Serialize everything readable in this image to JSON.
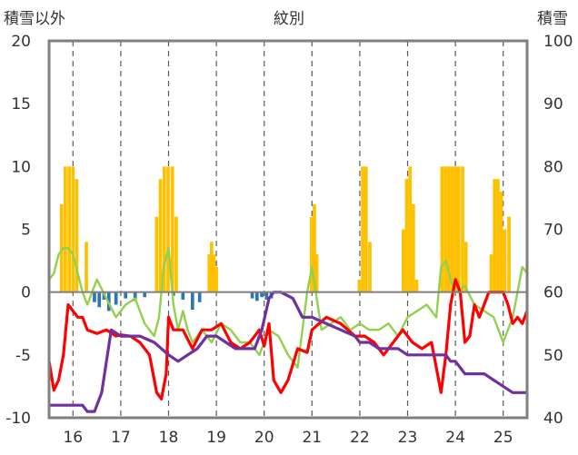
{
  "chart_data": {
    "type": "bar+line",
    "title": "紋別",
    "left_axis": {
      "label": "積雪以外",
      "range": [
        -10,
        20
      ],
      "ticks": [
        "20",
        "15",
        "10",
        "5",
        "0",
        "-5",
        "-10"
      ]
    },
    "right_axis": {
      "label": "積雪",
      "range": [
        40,
        100
      ],
      "ticks": [
        "100",
        "90",
        "80",
        "70",
        "60",
        "50",
        "40"
      ]
    },
    "x_axis": {
      "range": [
        15.5,
        25.5
      ],
      "ticks": [
        "16",
        "17",
        "18",
        "19",
        "20",
        "21",
        "22",
        "23",
        "24",
        "25"
      ]
    },
    "grid": "vertical dashed at each day",
    "colors": {
      "snowfall": "#FFC000",
      "rain": "#2E75B6",
      "red": "#FF0000",
      "green": "#92D050",
      "purple": "#7030A0",
      "frame": "#7f7f7f"
    },
    "series": [
      {
        "kind": "bar",
        "axis": "left",
        "color": "#FFC000",
        "x": [
          15.76,
          15.84,
          15.92,
          16.0,
          16.08,
          16.28,
          17.75,
          17.83,
          17.91,
          17.99,
          18.08,
          18.16,
          18.85,
          18.9,
          18.95,
          19.0,
          20.99,
          21.05,
          21.1,
          21.99,
          22.06,
          22.13,
          22.21,
          22.91,
          22.98,
          23.05,
          23.12,
          23.19,
          23.72,
          23.79,
          23.86,
          23.93,
          24.0,
          24.07,
          24.15,
          24.22,
          24.75,
          24.82,
          24.89,
          24.96,
          25.03,
          25.12
        ],
        "values": [
          7,
          10,
          10,
          10,
          9,
          4,
          6,
          9,
          10,
          10,
          10,
          6,
          3,
          4,
          3,
          2,
          6,
          7,
          3,
          1,
          10,
          10,
          4,
          5,
          9,
          10,
          7,
          1,
          10,
          10,
          10,
          10,
          10,
          10,
          10,
          4,
          3,
          9,
          9,
          8,
          5,
          6
        ]
      },
      {
        "kind": "bar",
        "axis": "left",
        "color": "#2E75B6",
        "x": [
          16.45,
          16.55,
          16.65,
          16.75,
          16.9,
          17.1,
          17.3,
          17.5,
          18.1,
          18.3,
          18.5,
          18.65,
          19.75,
          19.85,
          19.95,
          20.05,
          20.15
        ],
        "values": [
          -0.8,
          -1.2,
          -0.6,
          -1.5,
          -1.0,
          -0.5,
          -0.7,
          -0.4,
          -0.3,
          -0.6,
          -1.4,
          -0.8,
          -0.5,
          -0.7,
          -0.4,
          -0.6,
          -0.5
        ]
      },
      {
        "kind": "line",
        "axis": "left",
        "color": "#FF0000",
        "x": [
          15.5,
          15.6,
          15.7,
          15.8,
          15.9,
          16.0,
          16.1,
          16.2,
          16.3,
          16.5,
          16.7,
          16.9,
          17.0,
          17.2,
          17.4,
          17.6,
          17.75,
          17.85,
          17.95,
          18.0,
          18.1,
          18.3,
          18.5,
          18.7,
          18.9,
          19.1,
          19.3,
          19.5,
          19.7,
          19.9,
          20.0,
          20.1,
          20.2,
          20.35,
          20.5,
          20.7,
          20.9,
          21.0,
          21.3,
          21.6,
          21.9,
          22.1,
          22.3,
          22.5,
          22.7,
          22.9,
          23.1,
          23.3,
          23.5,
          23.6,
          23.7,
          23.8,
          23.9,
          24.0,
          24.1,
          24.2,
          24.3,
          24.4,
          24.5,
          24.6,
          24.7,
          24.8,
          25.0,
          25.1,
          25.2,
          25.3,
          25.4,
          25.5
        ],
        "values": [
          -5.5,
          -7.8,
          -7,
          -5,
          -1,
          -1.5,
          -2,
          -2,
          -3,
          -3.3,
          -3,
          -3.5,
          -3.4,
          -3.5,
          -4,
          -5,
          -8,
          -8.5,
          -6.5,
          -2,
          -3,
          -3,
          -4.5,
          -3,
          -3,
          -2.5,
          -4,
          -4.5,
          -4,
          -3,
          -4.3,
          -2.5,
          -7,
          -8,
          -7,
          -4.5,
          -4.8,
          -3,
          -2,
          -2.5,
          -3.5,
          -3.5,
          -4,
          -5,
          -4,
          -3,
          -4,
          -4.5,
          -4,
          -6,
          -8,
          -5,
          -1,
          1,
          0,
          -4,
          -3.5,
          -1,
          -2,
          -1,
          0,
          0,
          0,
          -1,
          -2.5,
          -2,
          -2.5,
          -1.5
        ]
      },
      {
        "kind": "line",
        "axis": "left",
        "color": "#92D050",
        "x": [
          15.5,
          15.6,
          15.7,
          15.8,
          15.9,
          16.0,
          16.2,
          16.3,
          16.5,
          16.7,
          16.9,
          17.1,
          17.3,
          17.5,
          17.7,
          17.8,
          17.9,
          18.0,
          18.1,
          18.2,
          18.3,
          18.4,
          18.5,
          18.7,
          18.9,
          19.1,
          19.3,
          19.5,
          19.7,
          19.9,
          20.1,
          20.3,
          20.5,
          20.7,
          20.9,
          21.0,
          21.2,
          21.4,
          21.6,
          21.8,
          22.0,
          22.2,
          22.4,
          22.6,
          22.8,
          23.0,
          23.2,
          23.4,
          23.6,
          23.7,
          23.8,
          23.9,
          24.0,
          24.2,
          24.4,
          24.6,
          24.8,
          25.0,
          25.2,
          25.4,
          25.5
        ],
        "values": [
          1,
          1.5,
          3,
          3.5,
          3.5,
          3,
          0,
          -1,
          1,
          -0.5,
          -2,
          -1,
          -0.5,
          -2.5,
          -3.5,
          -2,
          2,
          3.5,
          -1,
          -3,
          -1.5,
          -3,
          -4,
          -3,
          -4,
          -2.5,
          -3,
          -4,
          -4,
          -5,
          -3,
          -3.5,
          -5,
          -6,
          0,
          2,
          -3,
          -2.5,
          -2,
          -3,
          -2.5,
          -3,
          -3,
          -2.5,
          -3.5,
          -2,
          -1.5,
          -1,
          -2,
          2,
          2.5,
          1,
          0,
          0.5,
          -1,
          -1.5,
          -2,
          -4,
          -2,
          2,
          1.5
        ]
      },
      {
        "kind": "line",
        "axis": "right",
        "color": "#7030A0",
        "x": [
          15.5,
          16.2,
          16.3,
          16.45,
          16.6,
          16.8,
          17.0,
          17.4,
          17.7,
          18.0,
          18.2,
          18.4,
          18.6,
          18.8,
          19.0,
          19.2,
          19.4,
          19.6,
          19.8,
          19.95,
          20.1,
          20.2,
          20.35,
          20.6,
          20.8,
          21.0,
          21.3,
          21.6,
          21.9,
          22.0,
          22.2,
          22.4,
          22.6,
          22.8,
          23.0,
          23.2,
          23.4,
          23.6,
          23.8,
          23.9,
          24.0,
          24.2,
          24.4,
          24.6,
          24.8,
          25.0,
          25.2,
          25.5
        ],
        "values": [
          42,
          42,
          41,
          41,
          44,
          54,
          53,
          53,
          52,
          50,
          49,
          50,
          51,
          53,
          53,
          52,
          51,
          51,
          51,
          54,
          59,
          60,
          60,
          59,
          56,
          56,
          55,
          54,
          53,
          52,
          52,
          51,
          51,
          51,
          50,
          50,
          50,
          50,
          50,
          49,
          49,
          47,
          47,
          47,
          46,
          45,
          44,
          44
        ]
      }
    ]
  }
}
